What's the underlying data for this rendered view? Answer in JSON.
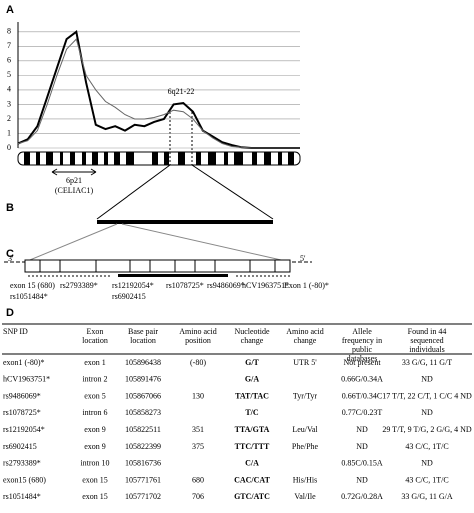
{
  "panel_labels": [
    "A",
    "B",
    "C",
    "D"
  ],
  "chart_data": {
    "type": "line",
    "ylim": [
      0,
      8.4
    ],
    "yticks": [
      0,
      1,
      2,
      3,
      4,
      5,
      6,
      7,
      8
    ],
    "grid": true,
    "annotation": "6q21-22",
    "series": [
      {
        "color": "#000000",
        "width": 2,
        "values": [
          0.3,
          0.6,
          1.5,
          3.5,
          5.5,
          7.5,
          8.0,
          4.5,
          1.6,
          1.3,
          1.5,
          1.2,
          1.6,
          1.5,
          1.8,
          2.0,
          3.0,
          3.1,
          2.5,
          1.2,
          0.8,
          0.4,
          0.2,
          0.05,
          0,
          0,
          0,
          0,
          0,
          0
        ]
      },
      {
        "color": "#666666",
        "width": 1,
        "values": [
          0.3,
          0.5,
          1.2,
          3.0,
          5.0,
          6.8,
          7.5,
          5.0,
          4.0,
          3.2,
          2.8,
          2.3,
          2.0,
          2.0,
          2.1,
          2.3,
          2.6,
          2.5,
          2.0,
          1.2,
          0.7,
          0.3,
          0.1,
          0.05,
          0,
          0,
          0,
          0,
          0,
          0
        ]
      }
    ]
  },
  "ideogram": {
    "band": "6p21",
    "note": "(CELIAC1)"
  },
  "gene": {
    "left_end": "3'",
    "right_end": "5'",
    "labels": [
      "exon 15 (680)",
      "rs1051484*",
      "rs2793389*",
      "rs12192054*",
      "rs6902415",
      "rs1078725*",
      "rs9486069*",
      "hCV1963751*",
      "Exon 1 (-80)*"
    ]
  },
  "table": {
    "header": [
      "SNP ID",
      "Exon location",
      "Base pair location",
      "Amino acid position",
      "Nucleotide change",
      "Amino acid change",
      "Allele frequency in public databases",
      "Found in 44 sequenced individuals"
    ],
    "rows": [
      [
        "exon1 (-80)*",
        "exon 1",
        "105896438",
        "(-80)",
        "G/T",
        "UTR 5'",
        "Not present",
        "33 G/G, 11 G/T"
      ],
      [
        "hCV1963751*",
        "intron 2",
        "105891476",
        null,
        "G/A",
        null,
        "0.66G/0.34A",
        "ND"
      ],
      [
        "rs9486069*",
        "exon 5",
        "105867066",
        "130",
        "TAT/TAC",
        "Tyr/Tyr",
        "0.66T/0.34C",
        "17 T/T, 22 C/T, 1 C/C 4 ND"
      ],
      [
        "rs1078725*",
        "intron 6",
        "105858273",
        null,
        "T/C",
        null,
        "0.77C/0.23T",
        "ND"
      ],
      [
        "rs12192054*",
        "exon 9",
        "105822511",
        "351",
        "TTA/GTA",
        "Leu/Val",
        "ND",
        "29 T/T, 9 T/G, 2 G/G, 4 ND"
      ],
      [
        "rs6902415",
        "exon 9",
        "105822399",
        "375",
        "TTC/TTT",
        "Phe/Phe",
        "ND",
        "43 C/C, 1T/C"
      ],
      [
        "rs2793389*",
        "intron 10",
        "105816736",
        null,
        "C/A",
        null,
        "0.85C/0.15A",
        "ND"
      ],
      [
        "exon15 (680)",
        "exon 15",
        "105771761",
        "680",
        "CAC/CAT",
        "His/His",
        "ND",
        "43 C/C, 1T/C"
      ],
      [
        "rs1051484*",
        "exon 15",
        "105771702",
        "706",
        "GTC/ATC",
        "Val/Ile",
        "0.72G/0.28A",
        "33 G/G, 11 G/A"
      ]
    ]
  }
}
